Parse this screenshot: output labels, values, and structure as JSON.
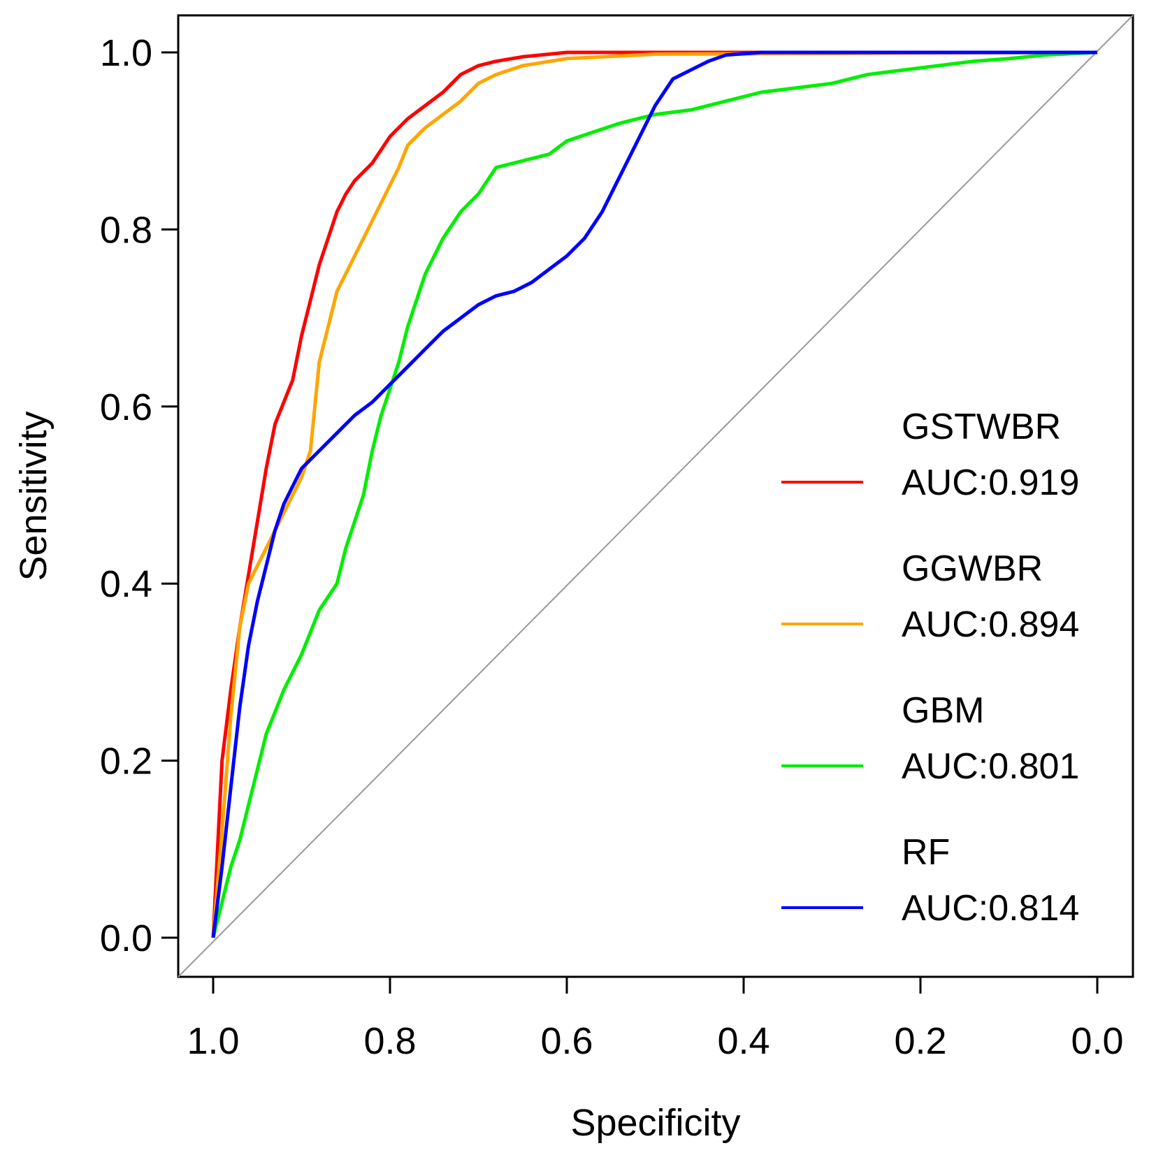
{
  "chart_data": {
    "type": "line",
    "xlabel": "Specificity",
    "ylabel": "Sensitivity",
    "xlim": [
      1.0,
      0.0
    ],
    "ylim": [
      0.0,
      1.0
    ],
    "x_ticks": [
      "1.0",
      "0.8",
      "0.6",
      "0.4",
      "0.2",
      "0.0"
    ],
    "y_ticks": [
      "0.0",
      "0.2",
      "0.4",
      "0.6",
      "0.8",
      "1.0"
    ],
    "grid": false,
    "legend_position": "right",
    "reference_line": {
      "from": [
        1.0,
        0.0
      ],
      "to": [
        0.0,
        1.0
      ],
      "color": "#999999"
    },
    "series": [
      {
        "name": "GSTWBR",
        "auc_label": "AUC:0.919",
        "color": "#ff0000",
        "points": [
          [
            1.0,
            0.0
          ],
          [
            0.995,
            0.1
          ],
          [
            0.99,
            0.2
          ],
          [
            0.98,
            0.28
          ],
          [
            0.97,
            0.35
          ],
          [
            0.96,
            0.41
          ],
          [
            0.95,
            0.47
          ],
          [
            0.94,
            0.53
          ],
          [
            0.93,
            0.58
          ],
          [
            0.91,
            0.63
          ],
          [
            0.9,
            0.68
          ],
          [
            0.89,
            0.72
          ],
          [
            0.88,
            0.76
          ],
          [
            0.87,
            0.79
          ],
          [
            0.86,
            0.82
          ],
          [
            0.85,
            0.84
          ],
          [
            0.84,
            0.855
          ],
          [
            0.82,
            0.875
          ],
          [
            0.8,
            0.905
          ],
          [
            0.78,
            0.925
          ],
          [
            0.76,
            0.94
          ],
          [
            0.74,
            0.955
          ],
          [
            0.72,
            0.975
          ],
          [
            0.7,
            0.985
          ],
          [
            0.68,
            0.99
          ],
          [
            0.65,
            0.995
          ],
          [
            0.6,
            1.0
          ],
          [
            0.0,
            1.0
          ]
        ]
      },
      {
        "name": "GGWBR",
        "auc_label": "AUC:0.894",
        "color": "#ffa500",
        "points": [
          [
            1.0,
            0.0
          ],
          [
            0.99,
            0.12
          ],
          [
            0.98,
            0.25
          ],
          [
            0.97,
            0.35
          ],
          [
            0.96,
            0.4
          ],
          [
            0.94,
            0.44
          ],
          [
            0.92,
            0.48
          ],
          [
            0.9,
            0.52
          ],
          [
            0.89,
            0.55
          ],
          [
            0.885,
            0.6
          ],
          [
            0.88,
            0.65
          ],
          [
            0.87,
            0.69
          ],
          [
            0.86,
            0.73
          ],
          [
            0.84,
            0.77
          ],
          [
            0.82,
            0.81
          ],
          [
            0.8,
            0.85
          ],
          [
            0.79,
            0.87
          ],
          [
            0.78,
            0.895
          ],
          [
            0.76,
            0.915
          ],
          [
            0.74,
            0.93
          ],
          [
            0.72,
            0.945
          ],
          [
            0.7,
            0.965
          ],
          [
            0.68,
            0.975
          ],
          [
            0.65,
            0.985
          ],
          [
            0.6,
            0.993
          ],
          [
            0.5,
            0.998
          ],
          [
            0.0,
            1.0
          ]
        ]
      },
      {
        "name": "GBM",
        "auc_label": "AUC:0.801",
        "color": "#00ee00",
        "points": [
          [
            1.0,
            0.0
          ],
          [
            0.99,
            0.04
          ],
          [
            0.98,
            0.08
          ],
          [
            0.97,
            0.11
          ],
          [
            0.96,
            0.15
          ],
          [
            0.95,
            0.19
          ],
          [
            0.94,
            0.23
          ],
          [
            0.92,
            0.28
          ],
          [
            0.9,
            0.32
          ],
          [
            0.88,
            0.37
          ],
          [
            0.86,
            0.4
          ],
          [
            0.85,
            0.44
          ],
          [
            0.84,
            0.47
          ],
          [
            0.83,
            0.5
          ],
          [
            0.82,
            0.55
          ],
          [
            0.81,
            0.59
          ],
          [
            0.8,
            0.62
          ],
          [
            0.79,
            0.65
          ],
          [
            0.78,
            0.69
          ],
          [
            0.77,
            0.72
          ],
          [
            0.76,
            0.75
          ],
          [
            0.75,
            0.77
          ],
          [
            0.74,
            0.79
          ],
          [
            0.72,
            0.82
          ],
          [
            0.7,
            0.84
          ],
          [
            0.68,
            0.87
          ],
          [
            0.66,
            0.875
          ],
          [
            0.64,
            0.88
          ],
          [
            0.62,
            0.885
          ],
          [
            0.6,
            0.9
          ],
          [
            0.57,
            0.91
          ],
          [
            0.54,
            0.92
          ],
          [
            0.5,
            0.93
          ],
          [
            0.46,
            0.935
          ],
          [
            0.42,
            0.945
          ],
          [
            0.38,
            0.955
          ],
          [
            0.34,
            0.96
          ],
          [
            0.3,
            0.965
          ],
          [
            0.26,
            0.975
          ],
          [
            0.22,
            0.98
          ],
          [
            0.18,
            0.985
          ],
          [
            0.14,
            0.99
          ],
          [
            0.1,
            0.993
          ],
          [
            0.06,
            0.997
          ],
          [
            0.0,
            1.0
          ]
        ]
      },
      {
        "name": "RF",
        "auc_label": "AUC:0.814",
        "color": "#0000ff",
        "points": [
          [
            1.0,
            0.0
          ],
          [
            0.99,
            0.08
          ],
          [
            0.98,
            0.17
          ],
          [
            0.97,
            0.26
          ],
          [
            0.96,
            0.33
          ],
          [
            0.95,
            0.38
          ],
          [
            0.94,
            0.42
          ],
          [
            0.93,
            0.46
          ],
          [
            0.92,
            0.49
          ],
          [
            0.91,
            0.51
          ],
          [
            0.9,
            0.53
          ],
          [
            0.88,
            0.55
          ],
          [
            0.86,
            0.57
          ],
          [
            0.84,
            0.59
          ],
          [
            0.82,
            0.605
          ],
          [
            0.8,
            0.625
          ],
          [
            0.78,
            0.645
          ],
          [
            0.76,
            0.665
          ],
          [
            0.74,
            0.685
          ],
          [
            0.72,
            0.7
          ],
          [
            0.7,
            0.715
          ],
          [
            0.68,
            0.725
          ],
          [
            0.66,
            0.73
          ],
          [
            0.64,
            0.74
          ],
          [
            0.62,
            0.755
          ],
          [
            0.6,
            0.77
          ],
          [
            0.58,
            0.79
          ],
          [
            0.56,
            0.82
          ],
          [
            0.54,
            0.86
          ],
          [
            0.52,
            0.9
          ],
          [
            0.5,
            0.94
          ],
          [
            0.48,
            0.97
          ],
          [
            0.46,
            0.98
          ],
          [
            0.44,
            0.99
          ],
          [
            0.42,
            0.997
          ],
          [
            0.38,
            1.0
          ],
          [
            0.0,
            1.0
          ]
        ]
      }
    ]
  }
}
